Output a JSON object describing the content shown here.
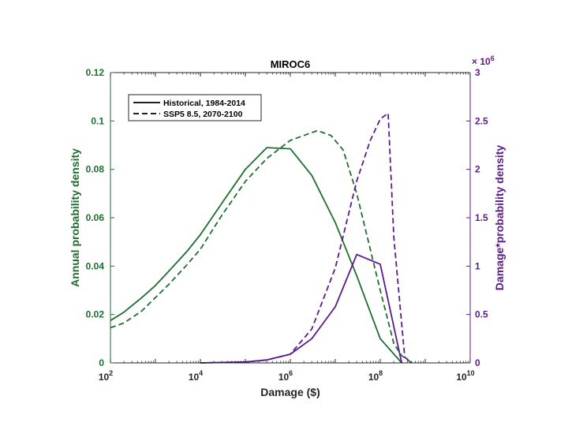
{
  "chart_data": {
    "type": "line",
    "title": "MIROC6",
    "xlabel": "Damage ($)",
    "ylabel_left": "Annual probability density",
    "ylabel_right": "Damage*probability density",
    "right_axis_multiplier": {
      "base": "× 10",
      "exponent": "6"
    },
    "xscale": "log",
    "xlim": [
      100,
      10000000000
    ],
    "ylim_left": [
      0,
      0.12
    ],
    "ylim_right": [
      0,
      3
    ],
    "xticks": [
      {
        "value": 100,
        "base": "10",
        "exp": "2"
      },
      {
        "value": 10000,
        "base": "10",
        "exp": "4"
      },
      {
        "value": 1000000,
        "base": "10",
        "exp": "6"
      },
      {
        "value": 100000000,
        "base": "10",
        "exp": "8"
      },
      {
        "value": 10000000000,
        "base": "10",
        "exp": "10"
      }
    ],
    "yticks_left": [
      "0",
      "0.02",
      "0.04",
      "0.06",
      "0.08",
      "0.1",
      "0.12"
    ],
    "yticks_left_values": [
      0,
      0.02,
      0.04,
      0.06,
      0.08,
      0.1,
      0.12
    ],
    "yticks_right": [
      "0",
      "0.5",
      "1",
      "1.5",
      "2",
      "2.5",
      "3"
    ],
    "yticks_right_values": [
      0,
      0.5,
      1,
      1.5,
      2,
      2.5,
      3
    ],
    "colors": {
      "left": "#1e6e2e",
      "right": "#5b1a8c",
      "axis": "#262626"
    },
    "legend": [
      {
        "label": "Historical, 1984-2014",
        "style": "solid"
      },
      {
        "label": "SSP5 8.5, 2070-2100",
        "style": "dashed"
      }
    ],
    "legend_position": "top-left",
    "series": [
      {
        "name": "Historical probability density",
        "axis": "left",
        "style": "solid",
        "x": [
          100,
          200,
          500,
          1000,
          2000,
          5000,
          10000,
          30000,
          100000,
          300000,
          1000000,
          3000000,
          10000000,
          30000000,
          100000000,
          300000000
        ],
        "y": [
          0.0175,
          0.021,
          0.027,
          0.032,
          0.038,
          0.046,
          0.053,
          0.066,
          0.08,
          0.089,
          0.0885,
          0.0775,
          0.058,
          0.036,
          0.01,
          0.0
        ]
      },
      {
        "name": "SSP5 8.5 probability density",
        "axis": "left",
        "style": "dashed",
        "x": [
          100,
          200,
          500,
          1000,
          2000,
          5000,
          10000,
          30000,
          100000,
          300000,
          1000000,
          4000000,
          8000000,
          15000000,
          30000000,
          100000000,
          200000000,
          300000000,
          500000000
        ],
        "y": [
          0.0145,
          0.0165,
          0.0215,
          0.027,
          0.0325,
          0.0405,
          0.047,
          0.061,
          0.075,
          0.0845,
          0.092,
          0.096,
          0.094,
          0.088,
          0.07,
          0.03,
          0.008,
          0.003,
          0.0
        ]
      },
      {
        "name": "Historical damage*probability density (x10^6)",
        "axis": "right",
        "style": "solid",
        "x": [
          10000,
          100000,
          300000,
          1000000,
          3000000,
          10000000,
          30000000,
          100000000,
          300000000
        ],
        "y": [
          0.0,
          0.01,
          0.03,
          0.09,
          0.25,
          0.58,
          1.12,
          1.02,
          0.0
        ]
      },
      {
        "name": "SSP5 8.5 damage*probability density (x10^6)",
        "axis": "right",
        "style": "dashed",
        "x": [
          10000,
          100000,
          300000,
          1000000,
          3000000,
          10000000,
          30000000,
          60000000,
          100000000,
          150000000,
          200000000,
          350000000,
          500000000
        ],
        "y": [
          0.0,
          0.01,
          0.03,
          0.09,
          0.35,
          0.98,
          1.88,
          2.3,
          2.52,
          2.58,
          1.3,
          0.06,
          0.0
        ]
      }
    ]
  }
}
